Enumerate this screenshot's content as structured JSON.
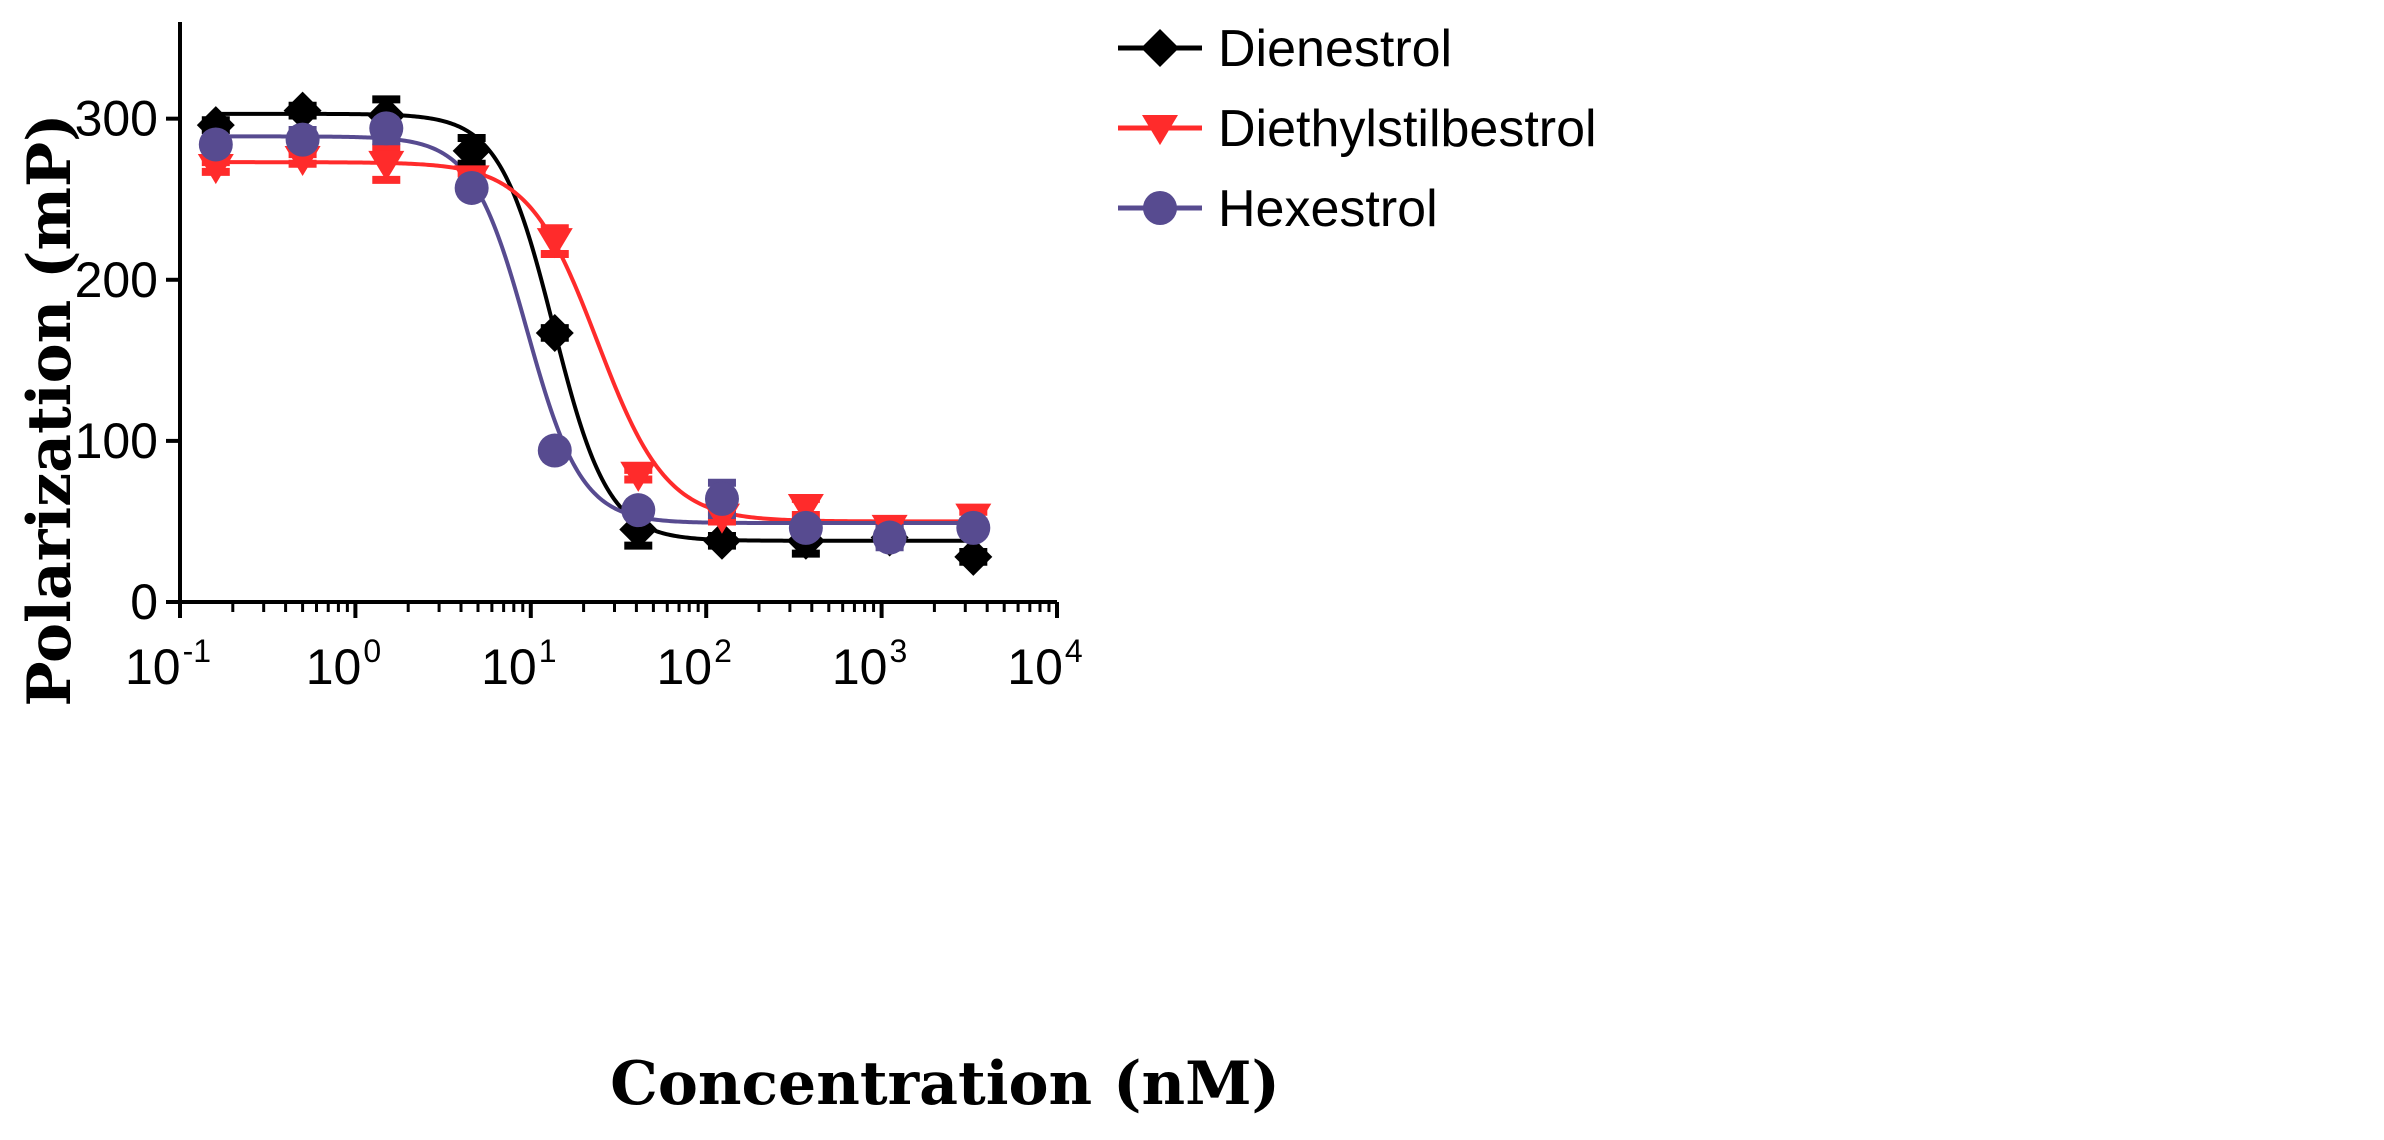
{
  "chart_data": {
    "type": "scatter",
    "title": "",
    "xlabel": "Concentration (nM)",
    "ylabel": "Polarization (mP)",
    "xscale": "log",
    "xlim": [
      0.1,
      10000
    ],
    "ylim": [
      0,
      360
    ],
    "yticks": [
      0,
      100,
      200,
      300
    ],
    "xticks": [
      {
        "value": 0.1,
        "base": "10",
        "exp": "-1"
      },
      {
        "value": 1,
        "base": "10",
        "exp": "0"
      },
      {
        "value": 10,
        "base": "10",
        "exp": "1"
      },
      {
        "value": 100,
        "base": "10",
        "exp": "2"
      },
      {
        "value": 1000,
        "base": "10",
        "exp": "3"
      },
      {
        "value": 10000,
        "base": "10",
        "exp": "4"
      }
    ],
    "legend_position": "top-right",
    "series": [
      {
        "name": "Dienestrol",
        "color": "#000000",
        "marker": "diamond",
        "x": [
          0.16,
          0.5,
          1.5,
          4.6,
          13.7,
          41,
          123,
          370,
          1111,
          3333
        ],
        "y": [
          296,
          305,
          302,
          280,
          167,
          45,
          38,
          38,
          40,
          28
        ],
        "err": [
          3,
          3,
          10,
          8,
          3,
          10,
          3,
          8,
          4,
          3
        ],
        "fit": {
          "top": 303,
          "bottom": 38,
          "ic50": 13.5,
          "hill": 2.8
        }
      },
      {
        "name": "Diethylstilbestrol",
        "color": "#ff2b2b",
        "marker": "triangle-down",
        "x": [
          0.16,
          0.5,
          1.5,
          4.6,
          13.7,
          41,
          123,
          370,
          1111,
          3333
        ],
        "y": [
          270,
          275,
          272,
          263,
          224,
          79,
          53,
          59,
          46,
          53
        ],
        "err": [
          3,
          3,
          10,
          3,
          8,
          3,
          3,
          5,
          3,
          3
        ],
        "fit": {
          "top": 273,
          "bottom": 50,
          "ic50": 24,
          "hill": 2.2
        }
      },
      {
        "name": "Hexestrol",
        "color": "#574b90",
        "marker": "circle",
        "x": [
          0.16,
          0.5,
          1.5,
          4.6,
          13.7,
          41,
          123,
          370,
          1111,
          3333
        ],
        "y": [
          284,
          287,
          294,
          257,
          94,
          57,
          64,
          46,
          40,
          46
        ],
        "err": [
          3,
          6,
          8,
          3,
          3,
          3,
          10,
          3,
          6,
          3
        ],
        "fit": {
          "top": 289,
          "bottom": 49,
          "ic50": 9.5,
          "hill": 2.8
        }
      }
    ]
  }
}
